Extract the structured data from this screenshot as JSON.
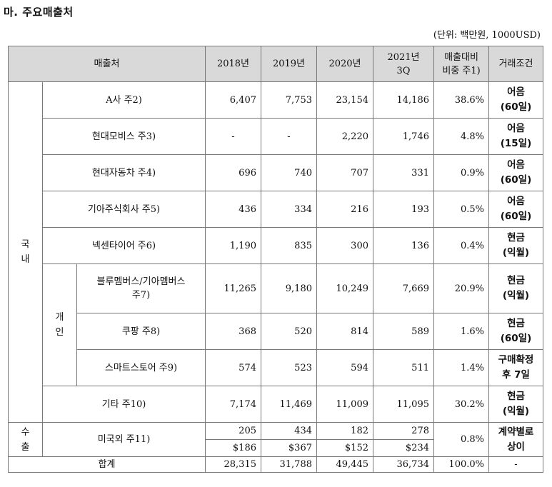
{
  "title": "마. 주요매출처",
  "unit": "(단위: 백만원, 1000USD)",
  "header": {
    "customer": "매출처",
    "y2018": "2018년",
    "y2019": "2019년",
    "y2020": "2020년",
    "q2021_line1": "2021년",
    "q2021_line2": "3Q",
    "ratio_line1": "매출대비",
    "ratio_line2": "비중 주1)",
    "terms": "거래조건"
  },
  "domestic_label_1": "국",
  "domestic_label_2": "내",
  "individual_label_1": "개",
  "individual_label_2": "인",
  "export_label_1": "수",
  "export_label_2": "출",
  "rows": [
    {
      "name": "A사 주2)",
      "y2018": "6,407",
      "y2019": "7,753",
      "y2020": "23,154",
      "q2021": "14,186",
      "ratio": "38.6%",
      "terms1": "어음",
      "terms2": "(60일)"
    },
    {
      "name": "현대모비스 주3)",
      "y2018": "-",
      "y2019": "-",
      "y2020": "2,220",
      "q2021": "1,746",
      "ratio": "4.8%",
      "terms1": "어음",
      "terms2": "(15일)"
    },
    {
      "name": "현대자동차 주4)",
      "y2018": "696",
      "y2019": "740",
      "y2020": "707",
      "q2021": "331",
      "ratio": "0.9%",
      "terms1": "어음",
      "terms2": "(60일)"
    },
    {
      "name": "기아주식회사 주5)",
      "y2018": "436",
      "y2019": "334",
      "y2020": "216",
      "q2021": "193",
      "ratio": "0.5%",
      "terms1": "어음",
      "terms2": "(60일)"
    },
    {
      "name": "넥센타이어 주6)",
      "y2018": "1,190",
      "y2019": "835",
      "y2020": "300",
      "q2021": "136",
      "ratio": "0.4%",
      "terms1": "현금",
      "terms2": "(익월)"
    }
  ],
  "individual_rows": [
    {
      "name1": "블루멤버스/기아멤버스",
      "name2": "주7)",
      "y2018": "11,265",
      "y2019": "9,180",
      "y2020": "10,249",
      "q2021": "7,669",
      "ratio": "20.9%",
      "terms1": "현금",
      "terms2": "(익월)"
    },
    {
      "name": "쿠팡 주8)",
      "y2018": "368",
      "y2019": "520",
      "y2020": "814",
      "q2021": "589",
      "ratio": "1.6%",
      "terms1": "현금",
      "terms2": "(60일)"
    },
    {
      "name": "스마트스토어 주9)",
      "y2018": "574",
      "y2019": "523",
      "y2020": "594",
      "q2021": "511",
      "ratio": "1.4%",
      "terms1": "구매확정",
      "terms2": "후 7일"
    }
  ],
  "other_row": {
    "name": "기타 주10)",
    "y2018": "7,174",
    "y2019": "11,469",
    "y2020": "11,009",
    "q2021": "11,095",
    "ratio": "30.2%",
    "terms1": "현금",
    "terms2": "(익월)"
  },
  "export_row": {
    "name": "미국외 주11)",
    "krw": {
      "y2018": "205",
      "y2019": "434",
      "y2020": "182",
      "q2021": "278"
    },
    "usd": {
      "y2018": "$186",
      "y2019": "$367",
      "y2020": "$152",
      "q2021": "$234"
    },
    "ratio": "0.8%",
    "terms1": "계약별로",
    "terms2": "상이"
  },
  "total_row": {
    "name": "합계",
    "y2018": "28,315",
    "y2019": "31,788",
    "y2020": "49,445",
    "q2021": "36,734",
    "ratio": "100.0%",
    "terms": "-"
  }
}
